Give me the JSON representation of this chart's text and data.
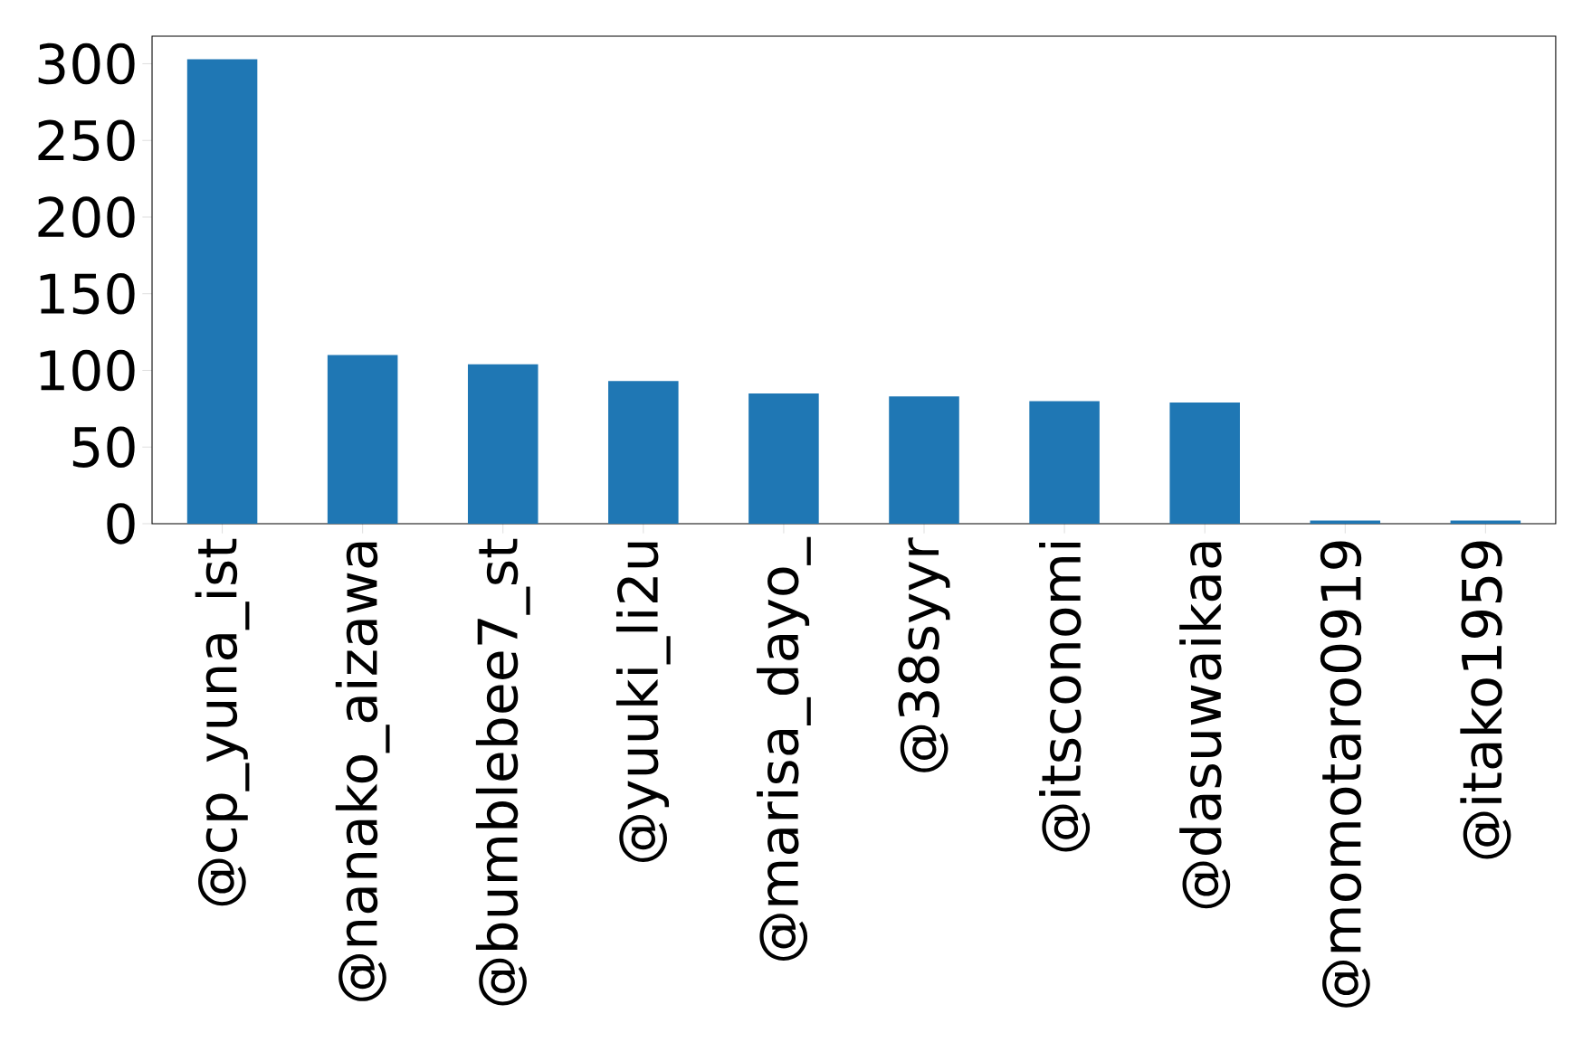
{
  "chart_data": {
    "type": "bar",
    "categories": [
      "@cp_yuna_ist",
      "@nanako_aizawa",
      "@bumblebee7_st",
      "@yuuki_li2u",
      "@marisa_dayo_",
      "@38syyr",
      "@itsconomi",
      "@dasuwaikaa",
      "@momotaro0919",
      "@itako1959"
    ],
    "values": [
      303,
      110,
      104,
      93,
      85,
      83,
      80,
      79,
      2,
      2
    ],
    "color": "#1f77b4",
    "ylim": [
      0,
      318
    ],
    "yticks": [
      0,
      50,
      100,
      150,
      200,
      250,
      300
    ]
  }
}
